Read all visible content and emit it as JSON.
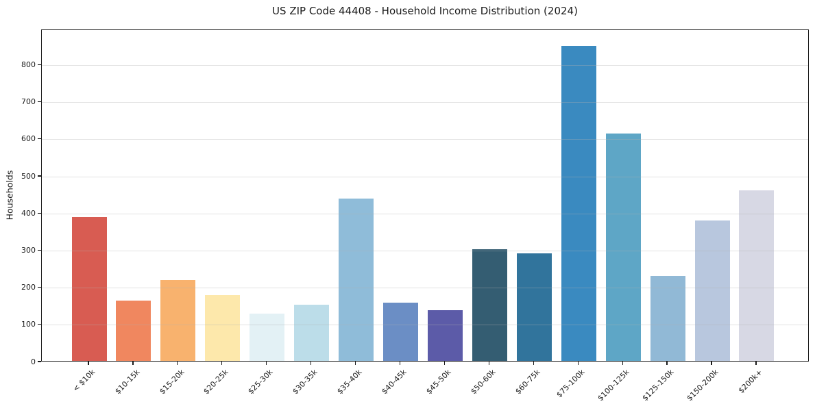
{
  "chart_data": {
    "type": "bar",
    "title": "US ZIP Code 44408 - Household Income Distribution (2024)",
    "xlabel": "",
    "ylabel": "Households",
    "categories": [
      "< $10k",
      "$10-15k",
      "$15-20k",
      "$20-25k",
      "$25-30k",
      "$30-35k",
      "$35-40k",
      "$40-45k",
      "$45-50k",
      "$50-60k",
      "$60-75k",
      "$75-100k",
      "$100-125k",
      "$125-150k",
      "$150-200k",
      "$200k+"
    ],
    "values": [
      388,
      162,
      218,
      178,
      128,
      152,
      438,
      156,
      137,
      301,
      289,
      849,
      612,
      228,
      378,
      459
    ],
    "bar_colors": [
      "#d85c52",
      "#f0875f",
      "#f8b26e",
      "#fde8ab",
      "#e3f1f5",
      "#bcdde9",
      "#8fbcd9",
      "#6b8ec5",
      "#5c5ba8",
      "#345d72",
      "#31749c",
      "#3a8ac0",
      "#5ea6c6",
      "#91b9d6",
      "#b8c7de",
      "#d7d8e4"
    ],
    "ylim": [
      0,
      895
    ],
    "yticks": [
      0,
      100,
      200,
      300,
      400,
      500,
      600,
      700,
      800
    ],
    "grid": "horizontal",
    "grid_over_bars": true,
    "legend": "none"
  },
  "colors": {
    "background": "#ffffff",
    "spine": "#1a1a1a",
    "text": "#1a1a1a",
    "grid": "#b0b0b0"
  }
}
